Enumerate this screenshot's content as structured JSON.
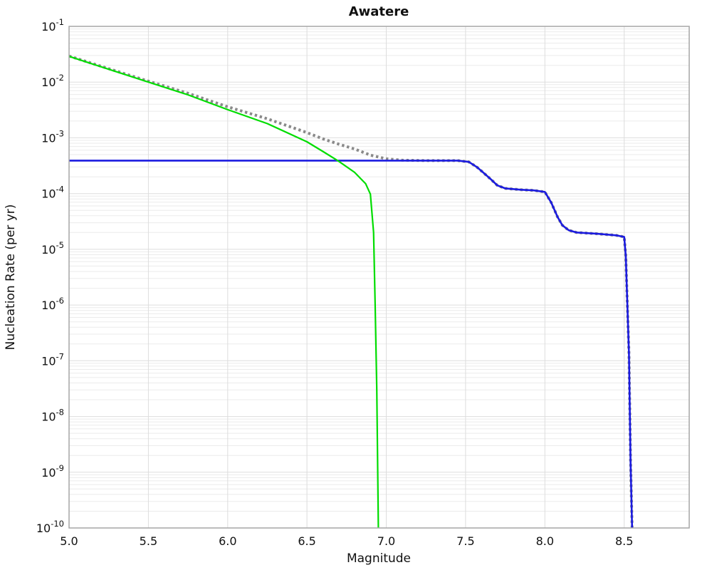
{
  "chart_data": {
    "type": "line",
    "title": "Awatere",
    "xlabel": "Magnitude",
    "ylabel": "Nucleation Rate (per yr)",
    "xlim": [
      5.0,
      8.91
    ],
    "ylim": [
      1e-10,
      0.1
    ],
    "ylim_exp": [
      -1,
      -10
    ],
    "x_tick_labels": [
      "5.0",
      "5.5",
      "6.0",
      "6.5",
      "7.0",
      "7.5",
      "8.0",
      "8.5"
    ],
    "y_tick_exponents": [
      "-1",
      "-2",
      "-3",
      "-4",
      "-5",
      "-6",
      "-7",
      "-8",
      "-9",
      "-10"
    ],
    "grid": {
      "major": true,
      "minor_log": true
    },
    "legend": false,
    "colors": {
      "gr_curve": "#00dd00",
      "total_curve": "#8a8a8a",
      "supra_curve": "#1b1be0",
      "grid_major": "#dddddd",
      "grid_minor": "#ebebeb",
      "border": "#a6a6a6",
      "text": "#111111"
    },
    "series": [
      {
        "name": "total-rate-dotted",
        "color_key": "total_curve",
        "style": "dotted",
        "width": 4,
        "points": [
          [
            5.0,
            0.0294
          ],
          [
            5.25,
            0.0174
          ],
          [
            5.5,
            0.0104
          ],
          [
            5.75,
            0.0063
          ],
          [
            6.0,
            0.0036
          ],
          [
            6.25,
            0.0022
          ],
          [
            6.5,
            0.00124
          ],
          [
            6.6,
            0.00096
          ],
          [
            6.7,
            0.00077
          ],
          [
            6.8,
            0.00063
          ],
          [
            6.9,
            0.00049
          ],
          [
            7.0,
            0.00042
          ],
          [
            7.1,
            0.000397
          ],
          [
            7.25,
            0.00039
          ],
          [
            7.45,
            0.00039
          ],
          [
            7.52,
            0.00037
          ],
          [
            7.57,
            0.0003
          ],
          [
            7.61,
            0.00024
          ],
          [
            7.66,
            0.00018
          ],
          [
            7.7,
            0.00014
          ],
          [
            7.75,
            0.000124
          ],
          [
            7.85,
            0.000117
          ],
          [
            7.93,
            0.000114
          ],
          [
            8.0,
            0.000107
          ],
          [
            8.04,
            6.9e-05
          ],
          [
            8.08,
            3.8e-05
          ],
          [
            8.11,
            2.7e-05
          ],
          [
            8.15,
            2.2e-05
          ],
          [
            8.2,
            2e-05
          ],
          [
            8.33,
            1.9e-05
          ],
          [
            8.45,
            1.78e-05
          ],
          [
            8.5,
            1.67e-05
          ],
          [
            8.51,
            7.6e-06
          ],
          [
            8.53,
            1.3e-07
          ],
          [
            8.54,
            1.6e-09
          ],
          [
            8.55,
            1e-10
          ]
        ]
      },
      {
        "name": "supra-seismogenic-rate",
        "color_key": "supra_curve",
        "style": "solid",
        "width": 2.6,
        "points": [
          [
            5.0,
            0.00039
          ],
          [
            7.45,
            0.00039
          ],
          [
            7.52,
            0.00037
          ],
          [
            7.57,
            0.0003
          ],
          [
            7.61,
            0.00024
          ],
          [
            7.66,
            0.00018
          ],
          [
            7.7,
            0.00014
          ],
          [
            7.75,
            0.000124
          ],
          [
            7.85,
            0.000117
          ],
          [
            7.93,
            0.000114
          ],
          [
            8.0,
            0.000107
          ],
          [
            8.04,
            6.9e-05
          ],
          [
            8.08,
            3.8e-05
          ],
          [
            8.11,
            2.7e-05
          ],
          [
            8.15,
            2.2e-05
          ],
          [
            8.2,
            2e-05
          ],
          [
            8.33,
            1.9e-05
          ],
          [
            8.45,
            1.78e-05
          ],
          [
            8.5,
            1.67e-05
          ],
          [
            8.51,
            7.6e-06
          ],
          [
            8.53,
            1.3e-07
          ],
          [
            8.54,
            1.6e-09
          ],
          [
            8.55,
            1e-10
          ]
        ]
      },
      {
        "name": "gr-sub-seismogenic-rate",
        "color_key": "gr_curve",
        "style": "solid",
        "width": 2.2,
        "points": [
          [
            5.0,
            0.029
          ],
          [
            5.25,
            0.017
          ],
          [
            5.5,
            0.01
          ],
          [
            5.75,
            0.0059
          ],
          [
            6.0,
            0.0032
          ],
          [
            6.25,
            0.0018
          ],
          [
            6.5,
            0.00085
          ],
          [
            6.6,
            0.00057
          ],
          [
            6.7,
            0.00038
          ],
          [
            6.8,
            0.00024
          ],
          [
            6.87,
            0.00015
          ],
          [
            6.9,
            9.8e-05
          ],
          [
            6.92,
            2e-05
          ],
          [
            6.93,
            1e-06
          ],
          [
            6.94,
            3e-08
          ],
          [
            6.95,
            1e-10
          ]
        ]
      }
    ]
  }
}
